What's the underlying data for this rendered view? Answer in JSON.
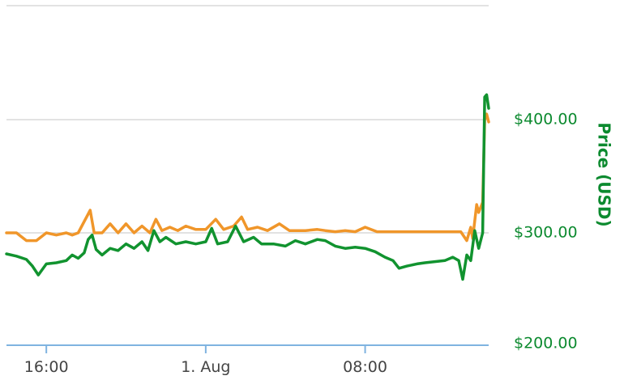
{
  "colors": {
    "series_green": "#11932f",
    "series_orange": "#f0962a",
    "axis_label": "#0c8a2f",
    "gridline": "#d8d8d8",
    "x_axis": "#7fb3e0",
    "tick_text": "#444444"
  },
  "chart_data": {
    "type": "line",
    "title": "",
    "ylabel": "Price (USD)",
    "y_axis_side": "right",
    "ylim": [
      200,
      500
    ],
    "y_ticks": [
      {
        "value": 200,
        "label": "$200.00"
      },
      {
        "value": 300,
        "label": "$300.00"
      },
      {
        "value": 400,
        "label": "$400.00"
      }
    ],
    "x_ticks": [
      {
        "t": 2,
        "label": "16:00"
      },
      {
        "t": 10,
        "label": "1. Aug"
      },
      {
        "t": 18,
        "label": "08:00"
      }
    ],
    "xlim": [
      0,
      24.2
    ],
    "grid": true,
    "legend": "none",
    "series": [
      {
        "color": "#f0962a",
        "points": [
          [
            0,
            300
          ],
          [
            0.5,
            300
          ],
          [
            1.0,
            293
          ],
          [
            1.5,
            293
          ],
          [
            2.0,
            300
          ],
          [
            2.5,
            298
          ],
          [
            3.0,
            300
          ],
          [
            3.3,
            298
          ],
          [
            3.6,
            300
          ],
          [
            3.9,
            310
          ],
          [
            4.2,
            320
          ],
          [
            4.4,
            300
          ],
          [
            4.8,
            300
          ],
          [
            5.2,
            308
          ],
          [
            5.6,
            300
          ],
          [
            6.0,
            308
          ],
          [
            6.4,
            300
          ],
          [
            6.8,
            306
          ],
          [
            7.2,
            300
          ],
          [
            7.5,
            312
          ],
          [
            7.8,
            302
          ],
          [
            8.2,
            305
          ],
          [
            8.6,
            302
          ],
          [
            9.0,
            306
          ],
          [
            9.5,
            303
          ],
          [
            10.0,
            303
          ],
          [
            10.5,
            312
          ],
          [
            10.9,
            303
          ],
          [
            11.4,
            306
          ],
          [
            11.8,
            314
          ],
          [
            12.1,
            303
          ],
          [
            12.6,
            305
          ],
          [
            13.1,
            302
          ],
          [
            13.7,
            308
          ],
          [
            14.2,
            302
          ],
          [
            15.0,
            302
          ],
          [
            15.6,
            303
          ],
          [
            16.0,
            302
          ],
          [
            16.5,
            301
          ],
          [
            17.0,
            302
          ],
          [
            17.5,
            301
          ],
          [
            18.0,
            305
          ],
          [
            18.6,
            301
          ],
          [
            19.2,
            301
          ],
          [
            19.8,
            301
          ],
          [
            20.4,
            301
          ],
          [
            21.0,
            301
          ],
          [
            21.6,
            301
          ],
          [
            22.2,
            301
          ],
          [
            22.8,
            301
          ],
          [
            23.1,
            293
          ],
          [
            23.3,
            305
          ],
          [
            23.4,
            295
          ],
          [
            23.6,
            325
          ],
          [
            23.7,
            318
          ],
          [
            23.9,
            327
          ],
          [
            24.0,
            400
          ],
          [
            24.1,
            405
          ],
          [
            24.2,
            398
          ]
        ]
      },
      {
        "color": "#11932f",
        "points": [
          [
            0,
            281
          ],
          [
            0.5,
            279
          ],
          [
            1.0,
            276
          ],
          [
            1.3,
            270
          ],
          [
            1.6,
            262
          ],
          [
            2.0,
            272
          ],
          [
            2.5,
            273
          ],
          [
            3.0,
            275
          ],
          [
            3.3,
            280
          ],
          [
            3.6,
            277
          ],
          [
            3.9,
            282
          ],
          [
            4.1,
            294
          ],
          [
            4.3,
            298
          ],
          [
            4.5,
            285
          ],
          [
            4.8,
            280
          ],
          [
            5.2,
            286
          ],
          [
            5.6,
            284
          ],
          [
            6.0,
            290
          ],
          [
            6.4,
            286
          ],
          [
            6.8,
            292
          ],
          [
            7.1,
            284
          ],
          [
            7.4,
            302
          ],
          [
            7.7,
            292
          ],
          [
            8.0,
            296
          ],
          [
            8.5,
            290
          ],
          [
            9.0,
            292
          ],
          [
            9.5,
            290
          ],
          [
            10.0,
            292
          ],
          [
            10.3,
            304
          ],
          [
            10.6,
            290
          ],
          [
            11.1,
            292
          ],
          [
            11.5,
            306
          ],
          [
            11.9,
            292
          ],
          [
            12.4,
            296
          ],
          [
            12.8,
            290
          ],
          [
            13.4,
            290
          ],
          [
            14.0,
            288
          ],
          [
            14.5,
            293
          ],
          [
            15.0,
            290
          ],
          [
            15.6,
            294
          ],
          [
            16.0,
            293
          ],
          [
            16.5,
            288
          ],
          [
            17.0,
            286
          ],
          [
            17.5,
            287
          ],
          [
            18.0,
            286
          ],
          [
            18.5,
            283
          ],
          [
            19.0,
            278
          ],
          [
            19.4,
            275
          ],
          [
            19.7,
            268
          ],
          [
            20.1,
            270
          ],
          [
            20.6,
            272
          ],
          [
            21.0,
            273
          ],
          [
            21.5,
            274
          ],
          [
            22.0,
            275
          ],
          [
            22.4,
            278
          ],
          [
            22.7,
            275
          ],
          [
            22.9,
            258
          ],
          [
            23.1,
            280
          ],
          [
            23.3,
            275
          ],
          [
            23.5,
            302
          ],
          [
            23.7,
            286
          ],
          [
            23.9,
            300
          ],
          [
            24.0,
            420
          ],
          [
            24.1,
            422
          ],
          [
            24.2,
            410
          ]
        ]
      }
    ]
  }
}
